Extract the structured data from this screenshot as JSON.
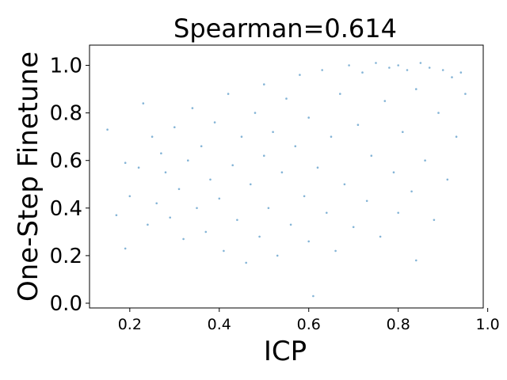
{
  "chart_data": {
    "type": "scatter",
    "title": "Spearman=0.614",
    "xlabel": "ICP",
    "ylabel": "One-Step Finetune",
    "xlim": [
      0.11,
      0.99
    ],
    "ylim": [
      -0.02,
      1.085
    ],
    "x_ticks": [
      0.2,
      0.4,
      0.6,
      0.8,
      1.0
    ],
    "x_tick_labels": [
      "0.2",
      "0.4",
      "0.6",
      "0.8",
      "1.0"
    ],
    "y_ticks": [
      0.0,
      0.2,
      0.4,
      0.6,
      0.8,
      1.0
    ],
    "y_tick_labels": [
      "0.0",
      "0.2",
      "0.4",
      "0.6",
      "0.8",
      "1.0"
    ],
    "grid": false,
    "legend": "none",
    "marker_color": "#1f77b4",
    "spearman": 0.614,
    "series": [
      {
        "points": [
          [
            0.15,
            0.73
          ],
          [
            0.17,
            0.37
          ],
          [
            0.19,
            0.23
          ],
          [
            0.19,
            0.59
          ],
          [
            0.2,
            0.45
          ],
          [
            0.22,
            0.57
          ],
          [
            0.23,
            0.84
          ],
          [
            0.24,
            0.33
          ],
          [
            0.25,
            0.7
          ],
          [
            0.26,
            0.42
          ],
          [
            0.27,
            0.63
          ],
          [
            0.28,
            0.55
          ],
          [
            0.29,
            0.36
          ],
          [
            0.3,
            0.74
          ],
          [
            0.31,
            0.48
          ],
          [
            0.32,
            0.27
          ],
          [
            0.33,
            0.6
          ],
          [
            0.34,
            0.82
          ],
          [
            0.35,
            0.4
          ],
          [
            0.36,
            0.66
          ],
          [
            0.37,
            0.3
          ],
          [
            0.38,
            0.52
          ],
          [
            0.39,
            0.76
          ],
          [
            0.4,
            0.44
          ],
          [
            0.41,
            0.22
          ],
          [
            0.42,
            0.88
          ],
          [
            0.43,
            0.58
          ],
          [
            0.44,
            0.35
          ],
          [
            0.45,
            0.7
          ],
          [
            0.46,
            0.17
          ],
          [
            0.47,
            0.5
          ],
          [
            0.48,
            0.8
          ],
          [
            0.49,
            0.28
          ],
          [
            0.5,
            0.62
          ],
          [
            0.5,
            0.92
          ],
          [
            0.51,
            0.4
          ],
          [
            0.52,
            0.72
          ],
          [
            0.53,
            0.2
          ],
          [
            0.54,
            0.55
          ],
          [
            0.55,
            0.86
          ],
          [
            0.56,
            0.33
          ],
          [
            0.57,
            0.66
          ],
          [
            0.58,
            0.96
          ],
          [
            0.59,
            0.45
          ],
          [
            0.6,
            0.26
          ],
          [
            0.6,
            0.78
          ],
          [
            0.61,
            0.03
          ],
          [
            0.62,
            0.57
          ],
          [
            0.63,
            0.98
          ],
          [
            0.64,
            0.38
          ],
          [
            0.65,
            0.7
          ],
          [
            0.66,
            0.22
          ],
          [
            0.67,
            0.88
          ],
          [
            0.68,
            0.5
          ],
          [
            0.69,
            1.0
          ],
          [
            0.7,
            0.32
          ],
          [
            0.71,
            0.75
          ],
          [
            0.72,
            0.97
          ],
          [
            0.73,
            0.43
          ],
          [
            0.74,
            0.62
          ],
          [
            0.75,
            1.01
          ],
          [
            0.76,
            0.28
          ],
          [
            0.77,
            0.85
          ],
          [
            0.78,
            0.99
          ],
          [
            0.79,
            0.55
          ],
          [
            0.8,
            0.38
          ],
          [
            0.8,
            1.0
          ],
          [
            0.81,
            0.72
          ],
          [
            0.82,
            0.98
          ],
          [
            0.83,
            0.47
          ],
          [
            0.84,
            0.18
          ],
          [
            0.84,
            0.9
          ],
          [
            0.85,
            1.01
          ],
          [
            0.86,
            0.6
          ],
          [
            0.87,
            0.99
          ],
          [
            0.88,
            0.35
          ],
          [
            0.89,
            0.8
          ],
          [
            0.9,
            0.98
          ],
          [
            0.91,
            0.52
          ],
          [
            0.92,
            0.95
          ],
          [
            0.93,
            0.7
          ],
          [
            0.94,
            0.97
          ],
          [
            0.95,
            0.88
          ]
        ]
      }
    ]
  }
}
